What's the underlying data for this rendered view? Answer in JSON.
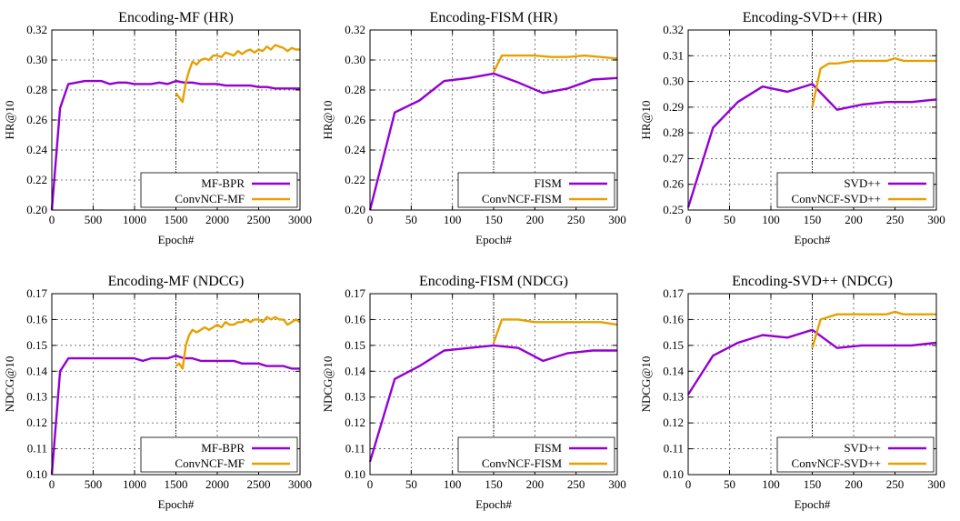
{
  "colors": {
    "baseline": "#9400d3",
    "convncf": "#e6a100"
  },
  "chart_data": [
    {
      "type": "line",
      "title": "Encoding-MF (HR)",
      "xlabel": "Epoch#",
      "ylabel": "HR@10",
      "xlim": [
        0,
        3000
      ],
      "ylim": [
        0.2,
        0.32
      ],
      "xticks": [
        "0",
        "500",
        "1000",
        "1500",
        "2000",
        "2500",
        "3000"
      ],
      "xtick_values": [
        0,
        500,
        1000,
        1500,
        2000,
        2500,
        3000
      ],
      "yticks": [
        "0.20",
        "0.22",
        "0.24",
        "0.26",
        "0.28",
        "0.30",
        "0.32"
      ],
      "ytick_values": [
        0.2,
        0.22,
        0.24,
        0.26,
        0.28,
        0.3,
        0.32
      ],
      "grid": true,
      "legend": "bottom-right",
      "vline": 1500,
      "series": [
        {
          "name": "MF-BPR",
          "color": "#9400d3",
          "x": [
            0,
            100,
            200,
            300,
            400,
            500,
            600,
            700,
            800,
            900,
            1000,
            1100,
            1200,
            1300,
            1400,
            1500,
            1600,
            1700,
            1800,
            1900,
            2000,
            2100,
            2200,
            2300,
            2400,
            2500,
            2600,
            2700,
            2800,
            2900,
            3000
          ],
          "y": [
            0.2,
            0.268,
            0.284,
            0.285,
            0.286,
            0.286,
            0.286,
            0.284,
            0.285,
            0.285,
            0.284,
            0.284,
            0.284,
            0.285,
            0.284,
            0.286,
            0.285,
            0.285,
            0.284,
            0.284,
            0.284,
            0.283,
            0.283,
            0.283,
            0.283,
            0.282,
            0.282,
            0.281,
            0.281,
            0.281,
            0.281
          ]
        },
        {
          "name": "ConvNCF-MF",
          "color": "#e6a100",
          "x": [
            1500,
            1540,
            1580,
            1620,
            1660,
            1700,
            1750,
            1800,
            1850,
            1900,
            1950,
            2000,
            2050,
            2100,
            2150,
            2200,
            2250,
            2300,
            2350,
            2400,
            2450,
            2500,
            2550,
            2600,
            2650,
            2700,
            2750,
            2800,
            2850,
            2900,
            2950,
            3000
          ],
          "y": [
            0.278,
            0.275,
            0.272,
            0.285,
            0.293,
            0.299,
            0.297,
            0.3,
            0.301,
            0.3,
            0.303,
            0.303,
            0.302,
            0.305,
            0.304,
            0.303,
            0.306,
            0.304,
            0.306,
            0.307,
            0.305,
            0.307,
            0.306,
            0.309,
            0.307,
            0.31,
            0.309,
            0.308,
            0.306,
            0.308,
            0.307,
            0.307
          ]
        }
      ]
    },
    {
      "type": "line",
      "title": "Encoding-FISM (HR)",
      "xlabel": "Epoch#",
      "ylabel": "HR@10",
      "xlim": [
        0,
        300
      ],
      "ylim": [
        0.2,
        0.32
      ],
      "xticks": [
        "0",
        "50",
        "100",
        "150",
        "200",
        "250",
        "300"
      ],
      "xtick_values": [
        0,
        50,
        100,
        150,
        200,
        250,
        300
      ],
      "yticks": [
        "0.20",
        "0.22",
        "0.24",
        "0.26",
        "0.28",
        "0.30",
        "0.32"
      ],
      "ytick_values": [
        0.2,
        0.22,
        0.24,
        0.26,
        0.28,
        0.3,
        0.32
      ],
      "grid": true,
      "legend": "bottom-right",
      "vline": 150,
      "series": [
        {
          "name": "FISM",
          "color": "#9400d3",
          "x": [
            0,
            30,
            60,
            90,
            120,
            150,
            180,
            210,
            240,
            270,
            300
          ],
          "y": [
            0.2,
            0.265,
            0.273,
            0.286,
            0.288,
            0.291,
            0.285,
            0.278,
            0.281,
            0.287,
            0.288
          ]
        },
        {
          "name": "ConvNCF-FISM",
          "color": "#e6a100",
          "x": [
            150,
            160,
            180,
            200,
            220,
            240,
            260,
            280,
            300
          ],
          "y": [
            0.292,
            0.303,
            0.303,
            0.303,
            0.302,
            0.302,
            0.303,
            0.302,
            0.301
          ]
        }
      ]
    },
    {
      "type": "line",
      "title": "Encoding-SVD++ (HR)",
      "xlabel": "Epoch#",
      "ylabel": "HR@10",
      "xlim": [
        0,
        300
      ],
      "ylim": [
        0.25,
        0.32
      ],
      "xticks": [
        "0",
        "50",
        "100",
        "150",
        "200",
        "250",
        "300"
      ],
      "xtick_values": [
        0,
        50,
        100,
        150,
        200,
        250,
        300
      ],
      "yticks": [
        "0.25",
        "0.26",
        "0.27",
        "0.28",
        "0.29",
        "0.30",
        "0.31",
        "0.32"
      ],
      "ytick_values": [
        0.25,
        0.26,
        0.27,
        0.28,
        0.29,
        0.3,
        0.31,
        0.32
      ],
      "grid": true,
      "legend": "bottom-right",
      "vline": 150,
      "series": [
        {
          "name": "SVD++",
          "color": "#9400d3",
          "x": [
            0,
            30,
            60,
            90,
            120,
            150,
            180,
            210,
            240,
            270,
            300
          ],
          "y": [
            0.251,
            0.282,
            0.292,
            0.298,
            0.296,
            0.299,
            0.289,
            0.291,
            0.292,
            0.292,
            0.293
          ]
        },
        {
          "name": "ConvNCF-SVD++",
          "color": "#e6a100",
          "x": [
            150,
            160,
            170,
            180,
            200,
            220,
            240,
            250,
            260,
            280,
            300
          ],
          "y": [
            0.29,
            0.305,
            0.307,
            0.307,
            0.308,
            0.308,
            0.308,
            0.309,
            0.308,
            0.308,
            0.308
          ]
        }
      ]
    },
    {
      "type": "line",
      "title": "Encoding-MF (NDCG)",
      "xlabel": "Epoch#",
      "ylabel": "NDCG@10",
      "xlim": [
        0,
        3000
      ],
      "ylim": [
        0.1,
        0.17
      ],
      "xticks": [
        "0",
        "500",
        "1000",
        "1500",
        "2000",
        "2500",
        "3000"
      ],
      "xtick_values": [
        0,
        500,
        1000,
        1500,
        2000,
        2500,
        3000
      ],
      "yticks": [
        "0.10",
        "0.11",
        "0.12",
        "0.13",
        "0.14",
        "0.15",
        "0.16",
        "0.17"
      ],
      "ytick_values": [
        0.1,
        0.11,
        0.12,
        0.13,
        0.14,
        0.15,
        0.16,
        0.17
      ],
      "grid": true,
      "legend": "bottom-right",
      "vline": 1500,
      "series": [
        {
          "name": "MF-BPR",
          "color": "#9400d3",
          "x": [
            0,
            100,
            200,
            300,
            400,
            500,
            600,
            700,
            800,
            900,
            1000,
            1100,
            1200,
            1300,
            1400,
            1500,
            1600,
            1700,
            1800,
            1900,
            2000,
            2100,
            2200,
            2300,
            2400,
            2500,
            2600,
            2700,
            2800,
            2900,
            3000
          ],
          "y": [
            0.1,
            0.14,
            0.145,
            0.145,
            0.145,
            0.145,
            0.145,
            0.145,
            0.145,
            0.145,
            0.145,
            0.144,
            0.145,
            0.145,
            0.145,
            0.146,
            0.145,
            0.145,
            0.144,
            0.144,
            0.144,
            0.144,
            0.144,
            0.143,
            0.143,
            0.143,
            0.142,
            0.142,
            0.142,
            0.141,
            0.141
          ]
        },
        {
          "name": "ConvNCF-MF",
          "color": "#e6a100",
          "x": [
            1500,
            1540,
            1580,
            1620,
            1660,
            1700,
            1750,
            1800,
            1850,
            1900,
            1950,
            2000,
            2050,
            2100,
            2150,
            2200,
            2250,
            2300,
            2350,
            2400,
            2450,
            2500,
            2550,
            2600,
            2650,
            2700,
            2750,
            2800,
            2850,
            2900,
            2950,
            3000
          ],
          "y": [
            0.142,
            0.143,
            0.141,
            0.15,
            0.154,
            0.156,
            0.155,
            0.156,
            0.157,
            0.156,
            0.157,
            0.158,
            0.157,
            0.159,
            0.158,
            0.158,
            0.159,
            0.159,
            0.16,
            0.159,
            0.16,
            0.16,
            0.159,
            0.161,
            0.16,
            0.161,
            0.16,
            0.16,
            0.158,
            0.159,
            0.16,
            0.159
          ]
        }
      ]
    },
    {
      "type": "line",
      "title": "Encoding-FISM (NDCG)",
      "xlabel": "Epoch#",
      "ylabel": "NDCG@10",
      "xlim": [
        0,
        300
      ],
      "ylim": [
        0.1,
        0.17
      ],
      "xticks": [
        "0",
        "50",
        "100",
        "150",
        "200",
        "250",
        "300"
      ],
      "xtick_values": [
        0,
        50,
        100,
        150,
        200,
        250,
        300
      ],
      "yticks": [
        "0.10",
        "0.11",
        "0.12",
        "0.13",
        "0.14",
        "0.15",
        "0.16",
        "0.17"
      ],
      "ytick_values": [
        0.1,
        0.11,
        0.12,
        0.13,
        0.14,
        0.15,
        0.16,
        0.17
      ],
      "grid": true,
      "legend": "bottom-right",
      "vline": 150,
      "series": [
        {
          "name": "FISM",
          "color": "#9400d3",
          "x": [
            0,
            30,
            60,
            90,
            120,
            150,
            180,
            210,
            240,
            270,
            300
          ],
          "y": [
            0.105,
            0.137,
            0.142,
            0.148,
            0.149,
            0.15,
            0.149,
            0.144,
            0.147,
            0.148,
            0.148
          ]
        },
        {
          "name": "ConvNCF-FISM",
          "color": "#e6a100",
          "x": [
            150,
            160,
            180,
            200,
            220,
            240,
            260,
            280,
            300
          ],
          "y": [
            0.151,
            0.16,
            0.16,
            0.159,
            0.159,
            0.159,
            0.159,
            0.159,
            0.158
          ]
        }
      ]
    },
    {
      "type": "line",
      "title": "Encoding-SVD++ (NDCG)",
      "xlabel": "Epoch#",
      "ylabel": "NDCG@10",
      "xlim": [
        0,
        300
      ],
      "ylim": [
        0.1,
        0.17
      ],
      "xticks": [
        "0",
        "50",
        "100",
        "150",
        "200",
        "250",
        "300"
      ],
      "xtick_values": [
        0,
        50,
        100,
        150,
        200,
        250,
        300
      ],
      "yticks": [
        "0.10",
        "0.11",
        "0.12",
        "0.13",
        "0.14",
        "0.15",
        "0.16",
        "0.17"
      ],
      "ytick_values": [
        0.1,
        0.11,
        0.12,
        0.13,
        0.14,
        0.15,
        0.16,
        0.17
      ],
      "grid": true,
      "legend": "bottom-right",
      "vline": 150,
      "series": [
        {
          "name": "SVD++",
          "color": "#9400d3",
          "x": [
            0,
            30,
            60,
            90,
            120,
            150,
            180,
            210,
            240,
            270,
            300
          ],
          "y": [
            0.131,
            0.146,
            0.151,
            0.154,
            0.153,
            0.156,
            0.149,
            0.15,
            0.15,
            0.15,
            0.151
          ]
        },
        {
          "name": "ConvNCF-SVD++",
          "color": "#e6a100",
          "x": [
            150,
            160,
            180,
            200,
            220,
            240,
            250,
            260,
            280,
            300
          ],
          "y": [
            0.149,
            0.16,
            0.162,
            0.162,
            0.162,
            0.162,
            0.163,
            0.162,
            0.162,
            0.162
          ]
        }
      ]
    }
  ]
}
